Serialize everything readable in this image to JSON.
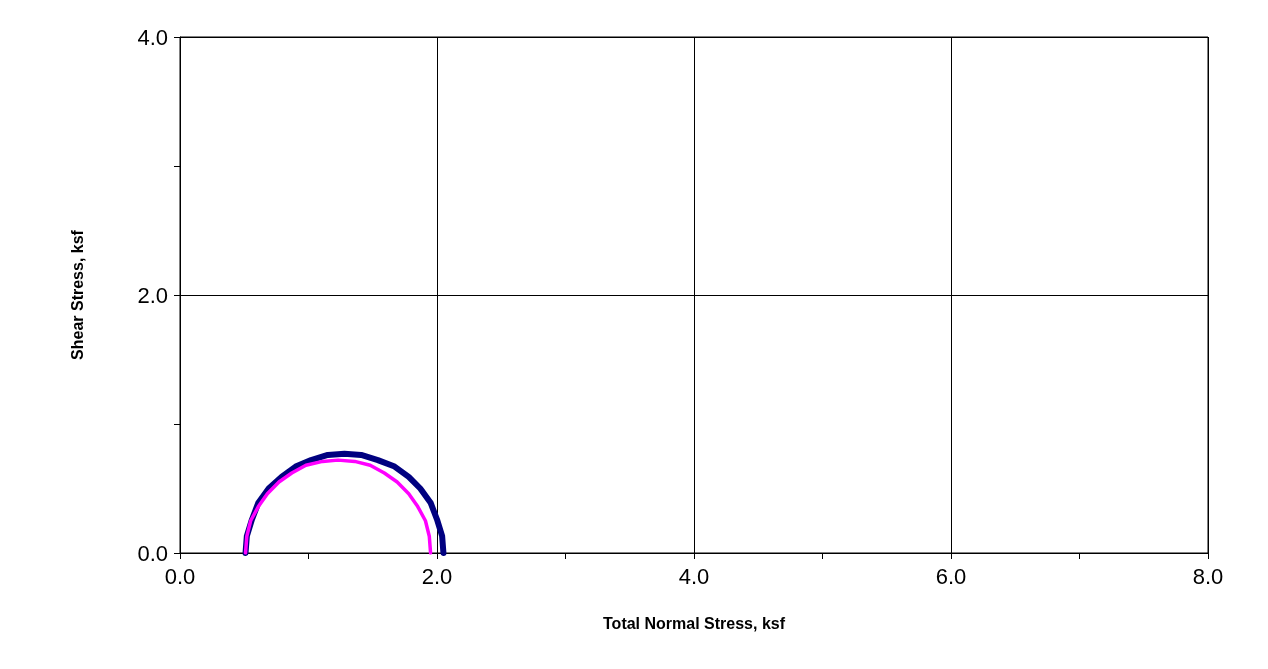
{
  "chart_data": {
    "type": "line",
    "xlabel": "Total Normal Stress, ksf",
    "ylabel": "Shear Stress, ksf",
    "xlim": [
      0,
      8
    ],
    "ylim": [
      0,
      4
    ],
    "xticks": [
      {
        "value": 0,
        "label": "0.0"
      },
      {
        "value": 1,
        "label": null
      },
      {
        "value": 2,
        "label": "2.0"
      },
      {
        "value": 3,
        "label": null
      },
      {
        "value": 4,
        "label": "4.0"
      },
      {
        "value": 5,
        "label": null
      },
      {
        "value": 6,
        "label": "6.0"
      },
      {
        "value": 7,
        "label": null
      },
      {
        "value": 8,
        "label": "8.0"
      }
    ],
    "yticks": [
      {
        "value": 0,
        "label": "0.0"
      },
      {
        "value": 1,
        "label": null
      },
      {
        "value": 2,
        "label": "2.0"
      },
      {
        "value": 3,
        "label": null
      },
      {
        "value": 4,
        "label": "4.0"
      }
    ],
    "grid": true,
    "marker": "none",
    "line_style": "solid",
    "series": [
      {
        "color": "#000080",
        "x": [
          2.05,
          2.04,
          2.0,
          1.95,
          1.87,
          1.78,
          1.67,
          1.54,
          1.41,
          1.28,
          1.15,
          1.02,
          0.9,
          0.79,
          0.69,
          0.61,
          0.56,
          0.52,
          0.51
        ],
        "values": [
          0,
          0.13,
          0.26,
          0.39,
          0.5,
          0.59,
          0.67,
          0.72,
          0.76,
          0.77,
          0.76,
          0.72,
          0.67,
          0.59,
          0.5,
          0.39,
          0.26,
          0.13,
          0
        ]
      },
      {
        "color": "#ff00ff",
        "x": [
          1.95,
          1.94,
          1.91,
          1.85,
          1.78,
          1.69,
          1.59,
          1.48,
          1.36,
          1.23,
          1.11,
          0.98,
          0.87,
          0.77,
          0.68,
          0.61,
          0.55,
          0.52,
          0.51
        ],
        "values": [
          0,
          0.13,
          0.25,
          0.36,
          0.46,
          0.55,
          0.62,
          0.68,
          0.71,
          0.72,
          0.71,
          0.68,
          0.62,
          0.55,
          0.46,
          0.36,
          0.25,
          0.13,
          0
        ]
      }
    ]
  }
}
